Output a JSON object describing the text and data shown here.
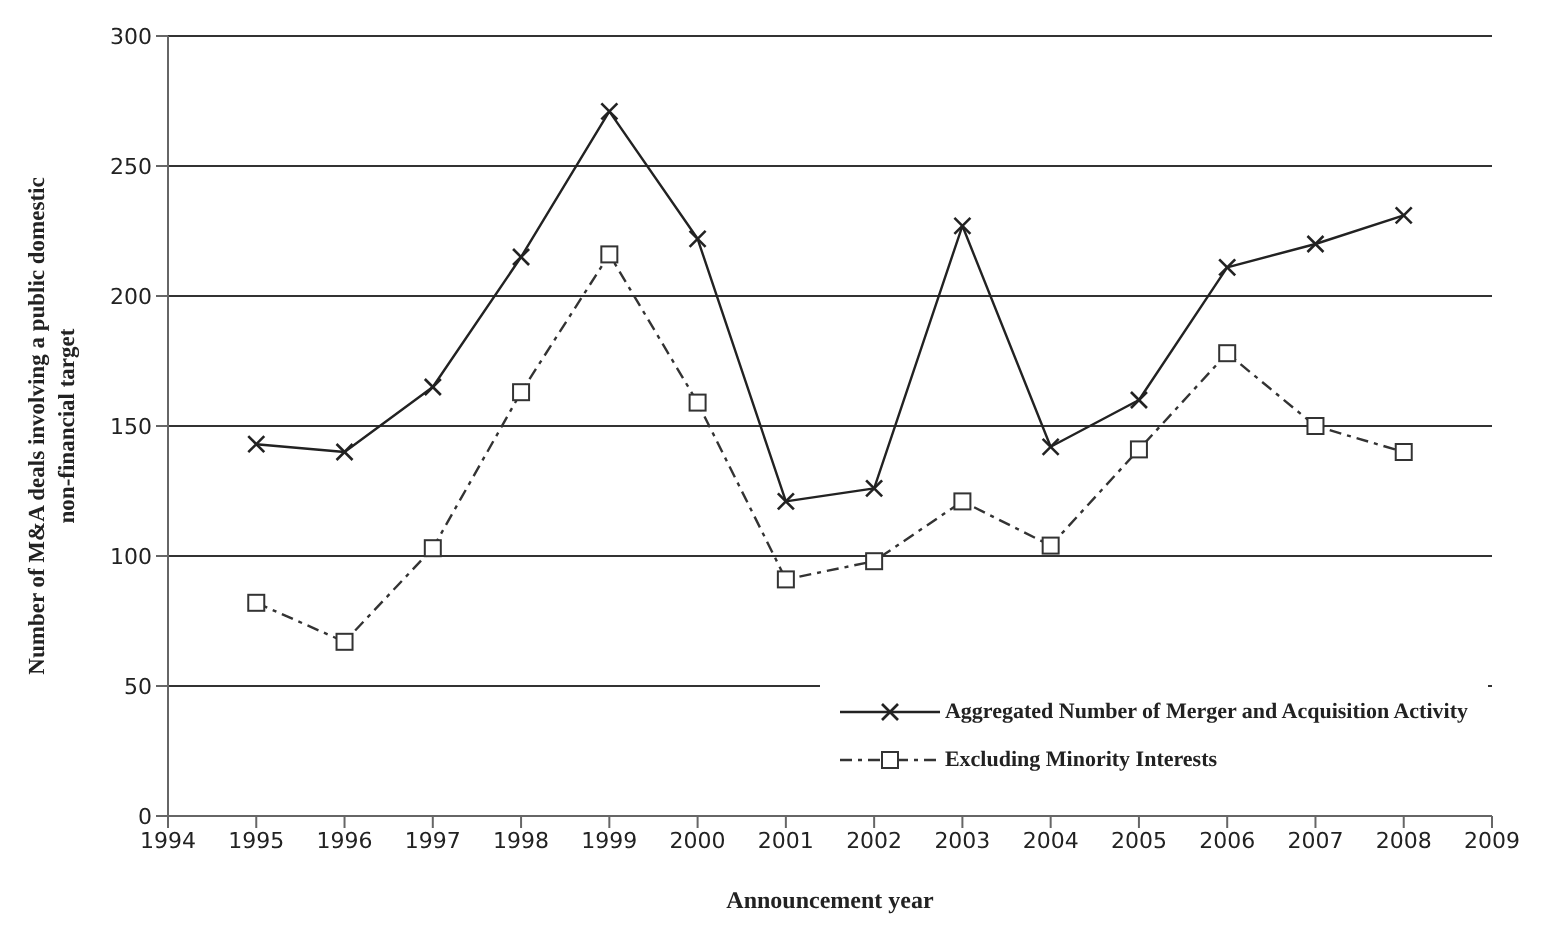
{
  "chart_data": {
    "type": "line",
    "xlabel": "Announcement year",
    "ylabel": "Number of M&A deals involving a public domestic non-financial target",
    "x": [
      1995,
      1996,
      1997,
      1998,
      1999,
      2000,
      2001,
      2002,
      2003,
      2004,
      2005,
      2006,
      2007,
      2008
    ],
    "series": [
      {
        "name": "Aggregated Number of Merger and Acquisition Activity",
        "color": "#222222",
        "marker": "cross",
        "line_style": "solid",
        "values": [
          143,
          140,
          165,
          215,
          271,
          222,
          121,
          126,
          227,
          142,
          160,
          211,
          220,
          231
        ]
      },
      {
        "name": "Excluding Minority Interests",
        "color": "#333333",
        "marker": "square",
        "line_style": "dashed",
        "values": [
          82,
          67,
          103,
          163,
          216,
          159,
          91,
          98,
          121,
          104,
          141,
          178,
          150,
          140
        ]
      }
    ],
    "xlim": [
      1994,
      2009
    ],
    "xticks": [
      1994,
      1995,
      1996,
      1997,
      1998,
      1999,
      2000,
      2001,
      2002,
      2003,
      2004,
      2005,
      2006,
      2007,
      2008,
      2009
    ],
    "ylim": [
      0,
      300
    ],
    "yticks": [
      0,
      50,
      100,
      150,
      200,
      250,
      300
    ],
    "grid": "y",
    "legend": "bottom right"
  }
}
